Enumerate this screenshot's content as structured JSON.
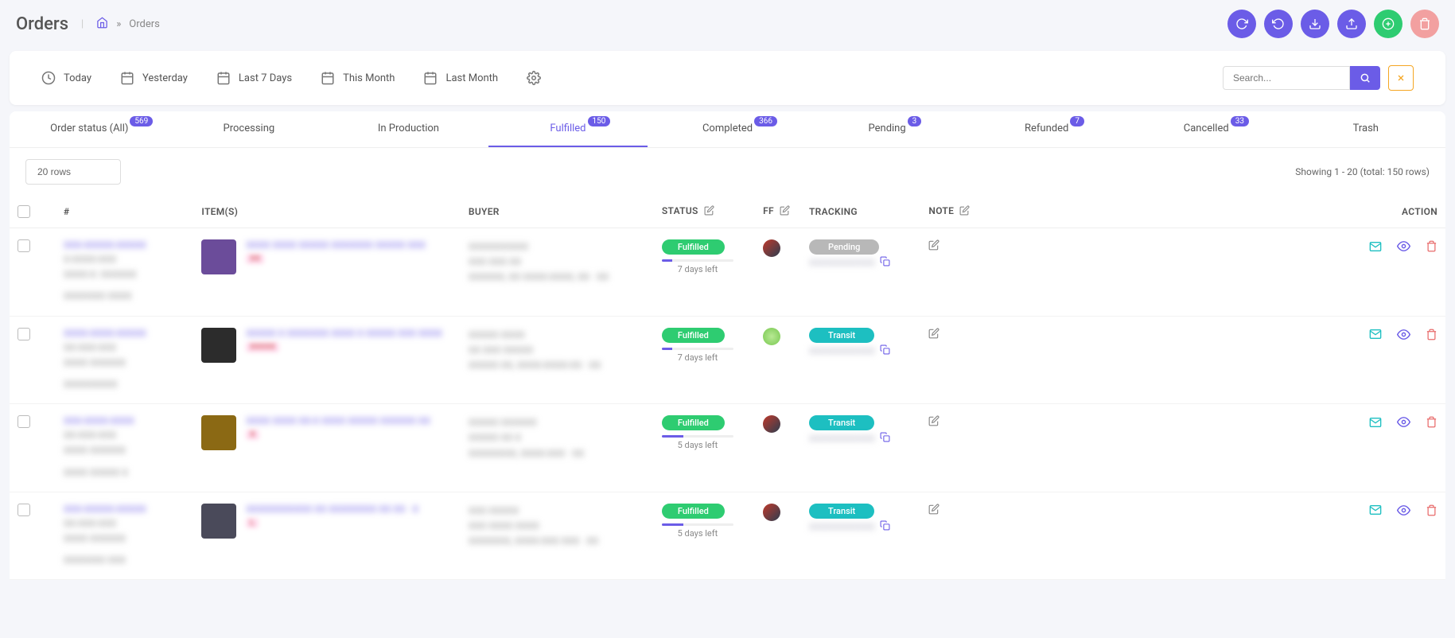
{
  "page": {
    "title": "Orders",
    "breadcrumb_home": "Home",
    "breadcrumb_sep": "»",
    "breadcrumb_current": "Orders"
  },
  "header_actions": [
    {
      "name": "refresh-1",
      "color": "#6b5ce7",
      "icon": "reload"
    },
    {
      "name": "refresh-2",
      "color": "#6b5ce7",
      "icon": "reload-alt"
    },
    {
      "name": "download",
      "color": "#6b5ce7",
      "icon": "download"
    },
    {
      "name": "upload",
      "color": "#6b5ce7",
      "icon": "upload"
    },
    {
      "name": "add",
      "color": "#2ecc71",
      "icon": "plus"
    },
    {
      "name": "delete",
      "color": "#f2a0a0",
      "icon": "trash"
    }
  ],
  "date_filters": [
    {
      "label": "Today",
      "icon": "clock"
    },
    {
      "label": "Yesterday",
      "icon": "calendar"
    },
    {
      "label": "Last 7 Days",
      "icon": "calendar"
    },
    {
      "label": "This Month",
      "icon": "calendar"
    },
    {
      "label": "Last Month",
      "icon": "calendar"
    }
  ],
  "search": {
    "placeholder": "Search..."
  },
  "tabs": [
    {
      "label": "Order status (All)",
      "badge": "569",
      "active": false
    },
    {
      "label": "Processing",
      "badge": null,
      "active": false
    },
    {
      "label": "In Production",
      "badge": null,
      "active": false
    },
    {
      "label": "Fulfilled",
      "badge": "150",
      "active": true
    },
    {
      "label": "Completed",
      "badge": "366",
      "active": false
    },
    {
      "label": "Pending",
      "badge": "3",
      "active": false
    },
    {
      "label": "Refunded",
      "badge": "7",
      "active": false
    },
    {
      "label": "Cancelled",
      "badge": "33",
      "active": false
    },
    {
      "label": "Trash",
      "badge": null,
      "active": false
    }
  ],
  "rows_select": "20 rows",
  "showing": "Showing 1 - 20 (total: 150 rows)",
  "columns": {
    "num": "#",
    "items": "ITEM(S)",
    "buyer": "BUYER",
    "status": "STATUS",
    "ff": "FF",
    "tracking": "TRACKING",
    "note": "NOTE",
    "action": "ACTION"
  },
  "status_colors": {
    "Fulfilled": "#2ecc71",
    "Pending": "#b8b8b8",
    "Transit": "#1dbfc1"
  },
  "rows": [
    {
      "order_id": "XXX-XXXXX-XXXXX",
      "order_meta1": "X-XXXX-XXX",
      "order_meta2": "XXXX-X: XXXXXX",
      "order_meta3": "XXXXXXX XXXX",
      "thumb_bg": "#6b4c9a",
      "item_title": "XXXX XXXX XXXXX XXXXXXX XXXXX XXX",
      "item_variant": "XX",
      "buyer_name": "XXXXXXXXXX",
      "buyer_line2": "XXX XXX XX",
      "buyer_line3": "XXXXXX, XX XXXX-XXXX, XX · XX",
      "status": "Fulfilled",
      "progress": 15,
      "days_left": "7 days left",
      "ff_color": "linear-gradient(135deg,#c0392b,#2c3e50)",
      "tracking_status": "Pending",
      "tracking_color": "#b8b8b8",
      "tracking_num": "XXXXXXXXXXXX"
    },
    {
      "order_id": "XXXX-XXXX-XXXXX",
      "order_meta1": "XX-XXX-XXX",
      "order_meta2": "XXXX XXXXXX",
      "order_meta3": "XXXXXXXXX",
      "thumb_bg": "#2c2c2c",
      "item_title": "XXXXX X XXXXXXX XXXX X XXXXX XXX XXXX",
      "item_variant": "XXXXX",
      "buyer_name": "XXXXX XXXX",
      "buyer_line2": "XX XXX XXXXX",
      "buyer_line3": "XXXXX XX, XXXX-XXXX-XX · XX",
      "status": "Fulfilled",
      "progress": 15,
      "days_left": "7 days left",
      "ff_color": "radial-gradient(circle,#b8e994,#78c850)",
      "tracking_status": "Transit",
      "tracking_color": "#1dbfc1",
      "tracking_num": "XXXXXXXXXXXX"
    },
    {
      "order_id": "XXX-XXXX-XXXX",
      "order_meta1": "XX-XXX-XXX",
      "order_meta2": "XXXX XXXXXX",
      "order_meta3": "XXXX XXXXX X",
      "thumb_bg": "#8b6914",
      "item_title": "XXXX XXXX XX-X XXXX XXXXX XXXXXX XX",
      "item_variant": "X",
      "buyer_name": "XXXXX XXXXXX",
      "buyer_line2": "XXXXX XX X",
      "buyer_line3": "XXXXXXXX, XXXX-XXX · XX",
      "status": "Fulfilled",
      "progress": 30,
      "days_left": "5 days left",
      "ff_color": "linear-gradient(135deg,#c0392b,#2c3e50)",
      "tracking_status": "Transit",
      "tracking_color": "#1dbfc1",
      "tracking_num": "XXXXXXXXXXXX"
    },
    {
      "order_id": "XXX-XXXXX-XXXXX",
      "order_meta1": "XX-XXX-XXX",
      "order_meta2": "XXXX XXXXXX",
      "order_meta3": "XXXXXXX XXX",
      "thumb_bg": "#4a4a5a",
      "item_title": "XXXXXXXXXXX XX XXXXXXXX XX XX · X",
      "item_variant": "L",
      "buyer_name": "XXX XXXXX",
      "buyer_line2": "XXX XXXX XXXX",
      "buyer_line3": "XXXXXXX, XXXX-XXX XXX · XX",
      "status": "Fulfilled",
      "progress": 30,
      "days_left": "5 days left",
      "ff_color": "linear-gradient(135deg,#c0392b,#2c3e50)",
      "tracking_status": "Transit",
      "tracking_color": "#1dbfc1",
      "tracking_num": "XXXXXXXXXXXX"
    }
  ]
}
